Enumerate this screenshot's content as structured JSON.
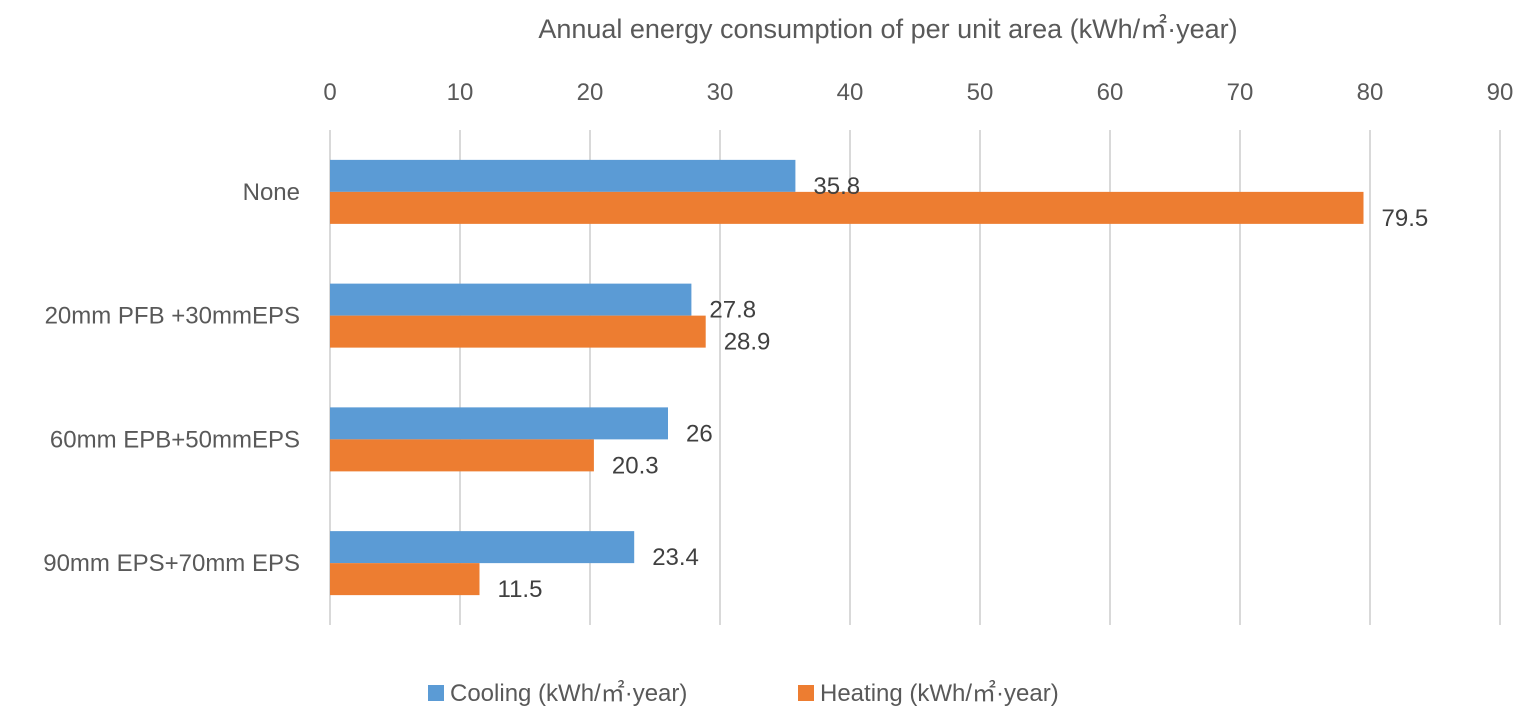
{
  "chart_data": {
    "type": "bar",
    "orientation": "horizontal",
    "title": "Annual energy consumption of per unit area (kWh/㎡·year)",
    "categories": [
      "None",
      "20mm PFB +30mmEPS",
      "60mm EPB+50mmEPS",
      "90mm EPS+70mm EPS"
    ],
    "series": [
      {
        "name": "Cooling (kWh/㎡·year)",
        "color": "#5b9bd5",
        "values": [
          35.8,
          27.8,
          26,
          23.4
        ]
      },
      {
        "name": "Heating (kWh/㎡·year)",
        "color": "#ed7d31",
        "values": [
          79.5,
          28.9,
          20.3,
          11.5
        ]
      }
    ],
    "x_ticks": [
      "0",
      "10",
      "20",
      "30",
      "40",
      "50",
      "60",
      "70",
      "80",
      "90"
    ],
    "xlim": [
      0,
      90
    ],
    "axis_position": "top",
    "grid": true,
    "legend_position": "bottom"
  }
}
